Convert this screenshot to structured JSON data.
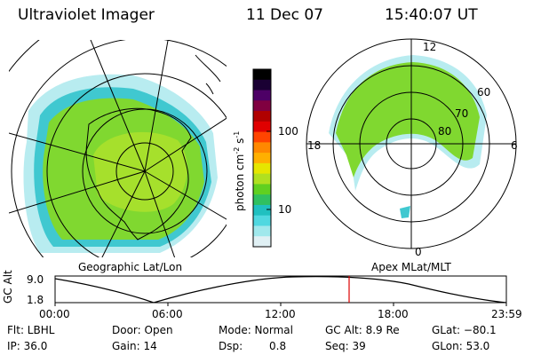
{
  "header": {
    "instrument": "Ultraviolet Imager",
    "date": "11 Dec 07",
    "time": "15:40:07 UT"
  },
  "left_map": {
    "label": "Geographic Lat/Lon"
  },
  "right_map": {
    "label": "Apex MLat/MLT",
    "mlt_labels": [
      "12",
      "18",
      "6",
      "0"
    ],
    "lat_labels": [
      "60",
      "70",
      "80"
    ]
  },
  "colorbar": {
    "ticks": [
      "100",
      "10"
    ],
    "unit": "photon cm",
    "unit_exp1": "-2",
    "unit_mid": "s",
    "unit_exp2": "-1",
    "colors": [
      "#000000",
      "#1a0033",
      "#4d0066",
      "#800040",
      "#b00000",
      "#e00000",
      "#ff4400",
      "#ff8800",
      "#ffb000",
      "#e6e600",
      "#b0e020",
      "#60d020",
      "#30c060",
      "#20c0c0",
      "#50d8e0",
      "#a0e8ec",
      "#e0f0f4"
    ]
  },
  "timeline": {
    "axis_label": "GC Alt",
    "y_max": "9.0",
    "y_min": "1.8",
    "ticks": [
      "00:00",
      "06:00",
      "12:00",
      "18:00",
      "23:59"
    ],
    "marker_color": "#dd0000"
  },
  "status": {
    "flt": "Flt: LBHL",
    "ip": "IP: 36.0",
    "door": "Door: Open",
    "gain": "Gain: 14",
    "mode": "Mode: Normal",
    "dsp_label": "Dsp:",
    "dsp_value": "0.8",
    "gcalt": "GC Alt: 8.9 Re",
    "seq": "Seq: 39",
    "glat": "GLat: −80.1",
    "glon": "GLon:  53.0"
  }
}
